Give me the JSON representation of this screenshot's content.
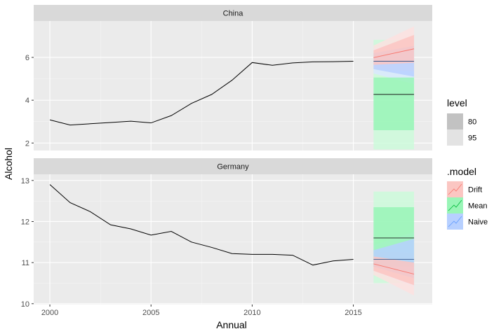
{
  "chart_data": {
    "type": "line",
    "xlabel": "Annual",
    "ylabel": "Alcohol",
    "x_ticks": [
      "2000",
      "2005",
      "2010",
      "2015"
    ],
    "x_ticks_values": [
      2000,
      2005,
      2010,
      2015
    ],
    "xlim": [
      1999.2,
      2018.9
    ],
    "legend_position": "right",
    "grid": true,
    "panel_background": "#ebebeb",
    "legends": {
      "level": {
        "title": "level",
        "items": [
          "80",
          "95"
        ],
        "colors": [
          "#c2c2c2",
          "#e3e3e3"
        ]
      },
      "model": {
        "title": ".model",
        "items": [
          "Drift",
          "Mean",
          "Naive"
        ],
        "colors": [
          "#f8766d",
          "#00ba38",
          "#619cff"
        ]
      }
    },
    "facets": [
      {
        "name": "China",
        "ylim": [
          1.65,
          7.7
        ],
        "y_ticks": [
          "2",
          "4",
          "6"
        ],
        "y_ticks_values": [
          2,
          4,
          6
        ],
        "history": {
          "x": [
            2000,
            2001,
            2002,
            2003,
            2004,
            2005,
            2006,
            2007,
            2008,
            2009,
            2010,
            2011,
            2012,
            2013,
            2014,
            2015
          ],
          "y": [
            3.08,
            2.84,
            2.9,
            2.96,
            3.02,
            2.94,
            3.28,
            3.85,
            4.27,
            4.93,
            5.76,
            5.63,
            5.74,
            5.79,
            5.8,
            5.82
          ]
        },
        "forecasts": [
          {
            "model": "Mean",
            "x": [
              2016,
              2018
            ],
            "mean": [
              4.27,
              4.27
            ],
            "lo80": [
              2.6,
              2.6
            ],
            "hi80": [
              5.06,
              5.06
            ],
            "lo95": [
              1.7,
              1.7
            ],
            "hi95": [
              6.82,
              6.82
            ]
          },
          {
            "model": "Naive",
            "x": [
              2016,
              2018
            ],
            "mean": [
              5.82,
              5.82
            ],
            "lo80": [
              5.45,
              5.1
            ],
            "hi80": [
              6.2,
              6.54
            ],
            "lo95": [
              5.25,
              4.75
            ],
            "hi95": [
              6.4,
              6.9
            ]
          },
          {
            "model": "Drift",
            "x": [
              2016,
              2018
            ],
            "mean": [
              5.99,
              6.4
            ],
            "lo80": [
              5.65,
              5.75
            ],
            "hi80": [
              6.33,
              7.05
            ],
            "lo95": [
              5.45,
              5.35
            ],
            "hi95": [
              6.55,
              7.45
            ]
          }
        ]
      },
      {
        "name": "Germany",
        "ylim": [
          9.98,
          13.15
        ],
        "y_ticks": [
          "10",
          "11",
          "12",
          "13"
        ],
        "y_ticks_values": [
          10,
          11,
          12,
          13
        ],
        "history": {
          "x": [
            2000,
            2001,
            2002,
            2003,
            2004,
            2005,
            2006,
            2007,
            2008,
            2009,
            2010,
            2011,
            2012,
            2013,
            2014,
            2015
          ],
          "y": [
            12.9,
            12.46,
            12.24,
            11.92,
            11.82,
            11.67,
            11.76,
            11.5,
            11.37,
            11.22,
            11.2,
            11.2,
            11.18,
            10.94,
            11.04,
            11.08
          ]
        },
        "forecasts": [
          {
            "model": "Mean",
            "x": [
              2016,
              2018
            ],
            "mean": [
              11.6,
              11.6
            ],
            "lo80": [
              10.9,
              10.9
            ],
            "hi80": [
              12.35,
              12.35
            ],
            "lo95": [
              10.5,
              10.5
            ],
            "hi95": [
              12.73,
              12.73
            ]
          },
          {
            "model": "Naive",
            "x": [
              2016,
              2018
            ],
            "mean": [
              11.08,
              11.08
            ],
            "lo80": [
              10.9,
              10.62
            ],
            "hi80": [
              11.3,
              11.58
            ],
            "lo95": [
              10.8,
              10.4
            ],
            "hi95": [
              11.42,
              11.75
            ]
          },
          {
            "model": "Drift",
            "x": [
              2016,
              2018
            ],
            "mean": [
              10.97,
              10.72
            ],
            "lo80": [
              10.8,
              10.45
            ],
            "hi80": [
              11.15,
              11.0
            ],
            "lo95": [
              10.7,
              10.2
            ],
            "hi95": [
              11.27,
              11.25
            ]
          }
        ]
      }
    ]
  }
}
